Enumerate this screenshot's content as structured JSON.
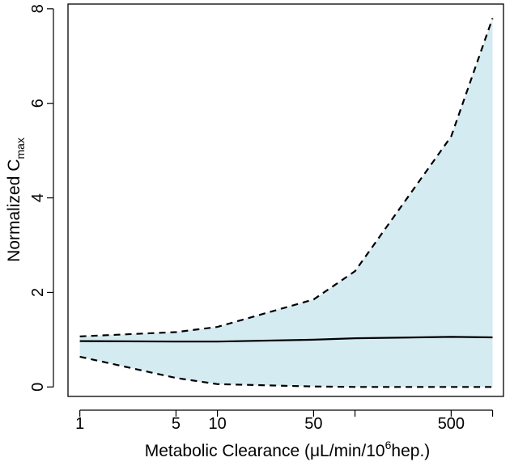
{
  "chart_data": {
    "type": "area",
    "title": "",
    "x_scale": "log",
    "xlim": [
      0.82,
      1200
    ],
    "ylim": [
      -0.2,
      8.1
    ],
    "xlabel": {
      "main": "Metabolic Clearance (μL/min/10",
      "superscript": "6",
      "tail": "hep.)"
    },
    "ylabel": {
      "main": "Normalized C",
      "subscript": "max"
    },
    "x_ticks": [
      1,
      5,
      10,
      50,
      100,
      500,
      1000
    ],
    "x_tick_labels": [
      "1",
      "5",
      "10",
      "50",
      "",
      "500",
      ""
    ],
    "y_ticks": [
      0,
      2,
      4,
      6,
      8
    ],
    "y_tick_labels": [
      "0",
      "2",
      "4",
      "6",
      "8"
    ],
    "grid": false,
    "legend": "none",
    "colors": {
      "band_fill": "#d5ebf2",
      "line": "#000000"
    },
    "series": [
      {
        "role": "upper-bound",
        "style": "dashed",
        "x": [
          1,
          5,
          10,
          50,
          100,
          500,
          1000
        ],
        "y": [
          1.07,
          1.16,
          1.27,
          1.85,
          2.45,
          5.3,
          7.8
        ]
      },
      {
        "role": "median",
        "style": "solid",
        "x": [
          1,
          5,
          10,
          50,
          100,
          500,
          1000
        ],
        "y": [
          0.97,
          0.96,
          0.96,
          1.0,
          1.03,
          1.06,
          1.05
        ]
      },
      {
        "role": "lower-bound",
        "style": "dashed",
        "x": [
          1,
          5,
          10,
          50,
          100,
          500,
          1000
        ],
        "y": [
          0.64,
          0.19,
          0.06,
          0.01,
          0.0,
          0.0,
          0.0
        ]
      }
    ]
  }
}
